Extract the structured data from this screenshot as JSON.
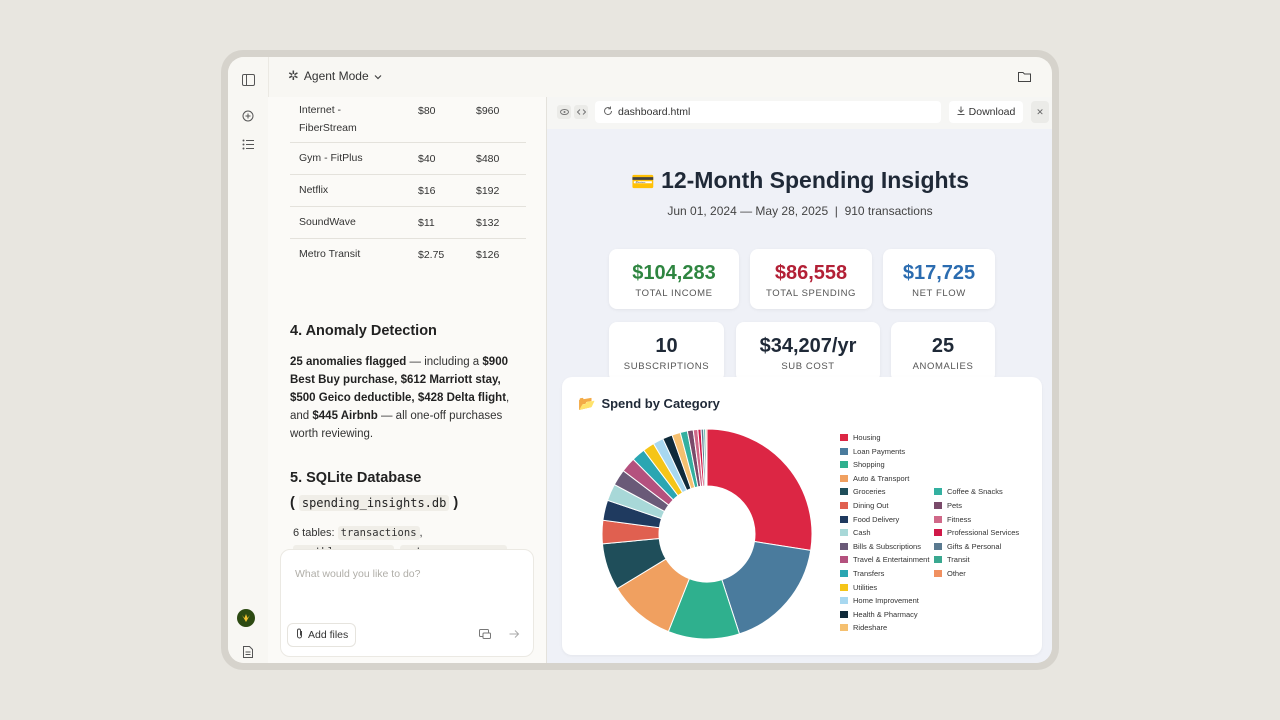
{
  "topbar": {
    "mode_label": "Agent Mode"
  },
  "subscriptions_rows": [
    {
      "name": "Internet - FiberStream",
      "monthly": "$80",
      "yearly": "$960"
    },
    {
      "name": "Gym - FitPlus",
      "monthly": "$40",
      "yearly": "$480"
    },
    {
      "name": "Netflix",
      "monthly": "$16",
      "yearly": "$192"
    },
    {
      "name": "SoundWave",
      "monthly": "$11",
      "yearly": "$132"
    },
    {
      "name": "Metro Transit",
      "monthly": "$2.75",
      "yearly": "$126"
    }
  ],
  "anomaly": {
    "title": "4. Anomaly Detection",
    "b1": "25 anomalies flagged",
    "t1": " — including a ",
    "b2": "$900 Best Buy purchase, $612 Marriott stay, $500 Geico deductible, $428 Delta flight",
    "t2": ", and ",
    "b3": "$445 Airbnb",
    "t3": " — all one-off purchases worth reviewing."
  },
  "sqlite": {
    "title": "5. SQLite Database",
    "open_paren": "(",
    "db_file": "spending_insights.db",
    "close_paren": ")",
    "tables_prefix": "6 tables:",
    "table1": "transactions",
    "table2": "monthly_summary",
    "table3": "category_summary",
    "sep": ","
  },
  "composer": {
    "placeholder": "What would you like to do?",
    "add_files": "Add files"
  },
  "preview": {
    "url": "dashboard.html",
    "download": "Download"
  },
  "dashboard": {
    "title": "12-Month Spending Insights",
    "title_emoji": "💳",
    "subtitle": "Jun 01, 2024 — May 28, 2025  |  910 transactions",
    "cards": {
      "income": {
        "value": "$104,283",
        "label": "TOTAL INCOME"
      },
      "spending": {
        "value": "$86,558",
        "label": "TOTAL SPENDING"
      },
      "net": {
        "value": "$17,725",
        "label": "NET FLOW"
      },
      "subs": {
        "value": "10",
        "label": "SUBSCRIPTIONS"
      },
      "subcost": {
        "value": "$34,207/yr",
        "label": "SUB COST"
      },
      "anomalies": {
        "value": "25",
        "label": "ANOMALIES"
      }
    },
    "category_title": "Spend by Category",
    "category_emoji": "📂"
  },
  "colors": {
    "income": "#2e8540",
    "spending": "#b32036",
    "net": "#2b6cb0"
  },
  "chart_data": {
    "type": "pie",
    "title": "Spend by Category",
    "donut": true,
    "legend_position": "right",
    "categories": [
      "Housing",
      "Loan Payments",
      "Shopping",
      "Auto & Transport",
      "Groceries",
      "Dining Out",
      "Food Delivery",
      "Cash",
      "Bills & Subscriptions",
      "Travel & Entertainment",
      "Transfers",
      "Utilities",
      "Home Improvement",
      "Health & Pharmacy",
      "Rideshare",
      "Coffee & Snacks",
      "Pets",
      "Fitness",
      "Professional Services",
      "Gifts & Personal",
      "Transit",
      "Other"
    ],
    "values": [
      27.5,
      17.5,
      11,
      10.3,
      7.2,
      3.6,
      3.1,
      2.6,
      2.5,
      2.3,
      2.1,
      1.8,
      1.6,
      1.5,
      1.3,
      1.1,
      0.9,
      0.7,
      0.5,
      0.4,
      0.3,
      0.2
    ],
    "colors": [
      "#dc2644",
      "#4a7b9d",
      "#2fb08e",
      "#f0a060",
      "#1f4e5a",
      "#e06050",
      "#1f3a5f",
      "#a8d8d8",
      "#6a5a78",
      "#b4517e",
      "#2aa6b2",
      "#f5c518",
      "#a8d8f0",
      "#0f2a3a",
      "#f5c070",
      "#33b0a0",
      "#7a4a6a",
      "#d06888",
      "#d01848",
      "#5a7a90",
      "#3aa890",
      "#f09060"
    ]
  }
}
